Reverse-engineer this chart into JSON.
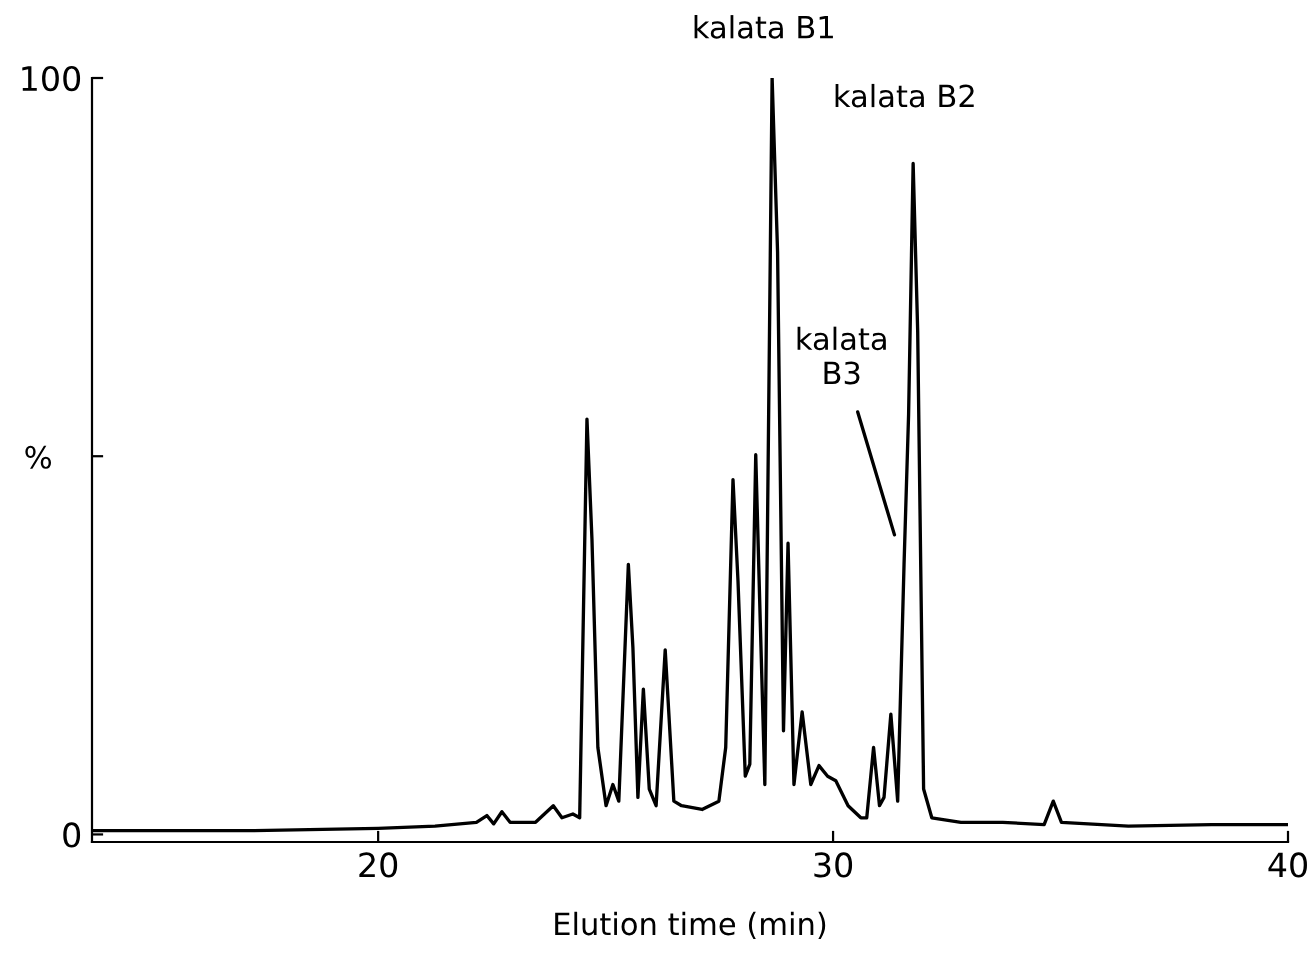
{
  "chart_data": {
    "type": "line",
    "xlabel": "Elution time (min)",
    "ylabel": "%",
    "xlim": [
      13.71,
      40
    ],
    "ylim": [
      -1,
      100
    ],
    "xticks": [
      20,
      30,
      40
    ],
    "yticks": [
      0,
      {
        "value": 50,
        "label": null
      },
      100
    ],
    "grid": false,
    "legend": false,
    "marker": "none",
    "line_style": "solid",
    "series": [
      {
        "color": "#000000",
        "x": [
          13.71,
          17.23,
          20,
          21.25,
          22.16,
          22.39,
          22.54,
          22.72,
          22.9,
          23.46,
          23.85,
          24.04,
          24.28,
          24.43,
          24.59,
          24.7,
          24.83,
          25.01,
          25.16,
          25.29,
          25.5,
          25.6,
          25.71,
          25.83,
          25.96,
          26.11,
          26.31,
          26.5,
          26.67,
          27.12,
          27.49,
          27.64,
          27.8,
          27.91,
          28.07,
          28.17,
          28.3,
          28.4,
          28.5,
          28.66,
          28.78,
          28.91,
          29.01,
          29.14,
          29.32,
          29.51,
          29.69,
          29.88,
          30.06,
          30.33,
          30.61,
          30.74,
          30.89,
          31.02,
          31.12,
          31.27,
          31.42,
          31.56,
          31.66,
          31.76,
          31.86,
          31.99,
          32.17,
          32.81,
          33.73,
          34.64,
          34.84,
          35.02,
          36.49,
          38.32,
          40
        ],
        "values": [
          0.5,
          0.5,
          0.8,
          1.1,
          1.6,
          2.5,
          1.4,
          3.0,
          1.6,
          1.6,
          3.8,
          2.2,
          2.7,
          2.2,
          54.9,
          39,
          11.5,
          3.8,
          6.6,
          4.4,
          35.7,
          24.7,
          4.9,
          19.2,
          6.0,
          3.8,
          24.4,
          4.4,
          3.8,
          3.3,
          4.4,
          11.5,
          46.9,
          33.5,
          7.7,
          9.3,
          50.2,
          28.0,
          6.6,
          100,
          77,
          13.7,
          38.5,
          6.6,
          16.2,
          6.6,
          9.1,
          7.7,
          7.1,
          3.8,
          2.2,
          2.2,
          11.5,
          3.8,
          4.9,
          15.9,
          4.4,
          35.7,
          55.5,
          88.7,
          66.5,
          6.0,
          2.2,
          1.6,
          1.6,
          1.3,
          4.4,
          1.6,
          1.1,
          1.3,
          1.3
        ]
      }
    ],
    "annotations": [
      {
        "text": "kalata B1",
        "x": 28.66,
        "y": 100
      },
      {
        "text": "kalata B2",
        "x": 31.76,
        "y": 88.7
      },
      {
        "text": "kalata\nB3",
        "x": 31.35,
        "y": 39.6
      }
    ]
  }
}
